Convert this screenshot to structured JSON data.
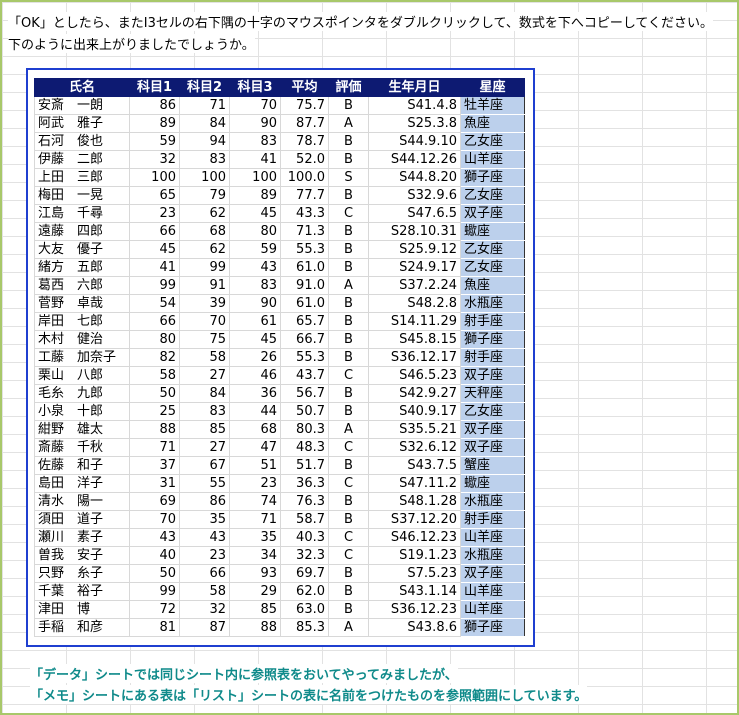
{
  "intro": {
    "line1": "「OK」としたら、またI3セルの右下隅の十字のマウスポインタをダブルクリックして、数式を下へコピーしてください。",
    "line2": "下のように出来上がりましたでしょうか。"
  },
  "table": {
    "header": [
      "氏名",
      "科目1",
      "科目2",
      "科目3",
      "平均",
      "評価",
      "生年月日",
      "星座"
    ],
    "rows": [
      [
        "安斎　一朗",
        "86",
        "71",
        "70",
        "75.7",
        "B",
        "S41.4.8",
        "牡羊座"
      ],
      [
        "阿武　雅子",
        "89",
        "84",
        "90",
        "87.7",
        "A",
        "S25.3.8",
        "魚座"
      ],
      [
        "石河　俊也",
        "59",
        "94",
        "83",
        "78.7",
        "B",
        "S44.9.10",
        "乙女座"
      ],
      [
        "伊藤　二郎",
        "32",
        "83",
        "41",
        "52.0",
        "B",
        "S44.12.26",
        "山羊座"
      ],
      [
        "上田　三郎",
        "100",
        "100",
        "100",
        "100.0",
        "S",
        "S44.8.20",
        "獅子座"
      ],
      [
        "梅田　一晃",
        "65",
        "79",
        "89",
        "77.7",
        "B",
        "S32.9.6",
        "乙女座"
      ],
      [
        "江島　千尋",
        "23",
        "62",
        "45",
        "43.3",
        "C",
        "S47.6.5",
        "双子座"
      ],
      [
        "遠藤　四郎",
        "66",
        "68",
        "80",
        "71.3",
        "B",
        "S28.10.31",
        "蠍座"
      ],
      [
        "大友　優子",
        "45",
        "62",
        "59",
        "55.3",
        "B",
        "S25.9.12",
        "乙女座"
      ],
      [
        "緒方　五郎",
        "41",
        "99",
        "43",
        "61.0",
        "B",
        "S24.9.17",
        "乙女座"
      ],
      [
        "葛西　六郎",
        "99",
        "91",
        "83",
        "91.0",
        "A",
        "S37.2.24",
        "魚座"
      ],
      [
        "菅野　卓哉",
        "54",
        "39",
        "90",
        "61.0",
        "B",
        "S48.2.8",
        "水瓶座"
      ],
      [
        "岸田　七郎",
        "66",
        "70",
        "61",
        "65.7",
        "B",
        "S14.11.29",
        "射手座"
      ],
      [
        "木村　健治",
        "80",
        "75",
        "45",
        "66.7",
        "B",
        "S45.8.15",
        "獅子座"
      ],
      [
        "工藤　加奈子",
        "82",
        "58",
        "26",
        "55.3",
        "B",
        "S36.12.17",
        "射手座"
      ],
      [
        "栗山　八郎",
        "58",
        "27",
        "46",
        "43.7",
        "C",
        "S46.5.23",
        "双子座"
      ],
      [
        "毛糸　九郎",
        "50",
        "84",
        "36",
        "56.7",
        "B",
        "S42.9.27",
        "天秤座"
      ],
      [
        "小泉　十郎",
        "25",
        "83",
        "44",
        "50.7",
        "B",
        "S40.9.17",
        "乙女座"
      ],
      [
        "紺野　雄太",
        "88",
        "85",
        "68",
        "80.3",
        "A",
        "S35.5.21",
        "双子座"
      ],
      [
        "斎藤　千秋",
        "71",
        "27",
        "47",
        "48.3",
        "C",
        "S32.6.12",
        "双子座"
      ],
      [
        "佐藤　和子",
        "37",
        "67",
        "51",
        "51.7",
        "B",
        "S43.7.5",
        "蟹座"
      ],
      [
        "島田　洋子",
        "31",
        "55",
        "23",
        "36.3",
        "C",
        "S47.11.2",
        "蠍座"
      ],
      [
        "清水　陽一",
        "69",
        "86",
        "74",
        "76.3",
        "B",
        "S48.1.28",
        "水瓶座"
      ],
      [
        "須田　道子",
        "70",
        "35",
        "71",
        "58.7",
        "B",
        "S37.12.20",
        "射手座"
      ],
      [
        "瀬川　素子",
        "43",
        "43",
        "35",
        "40.3",
        "C",
        "S46.12.23",
        "山羊座"
      ],
      [
        "曽我　安子",
        "40",
        "23",
        "34",
        "32.3",
        "C",
        "S19.1.23",
        "水瓶座"
      ],
      [
        "只野　糸子",
        "50",
        "66",
        "93",
        "69.7",
        "B",
        "S7.5.23",
        "双子座"
      ],
      [
        "千葉　裕子",
        "99",
        "58",
        "29",
        "62.0",
        "B",
        "S43.1.14",
        "山羊座"
      ],
      [
        "津田　博",
        "72",
        "32",
        "85",
        "63.0",
        "B",
        "S36.12.23",
        "山羊座"
      ],
      [
        "手稲　和彦",
        "81",
        "87",
        "88",
        "85.3",
        "A",
        "S43.8.6",
        "獅子座"
      ]
    ]
  },
  "notes": {
    "line1": "「データ」シートでは同じシート内に参照表をおいてやってみましたが、",
    "line2": "「メモ」シートにある表は「リスト」シートの表に名前をつけたものを参照範囲にしています。"
  }
}
